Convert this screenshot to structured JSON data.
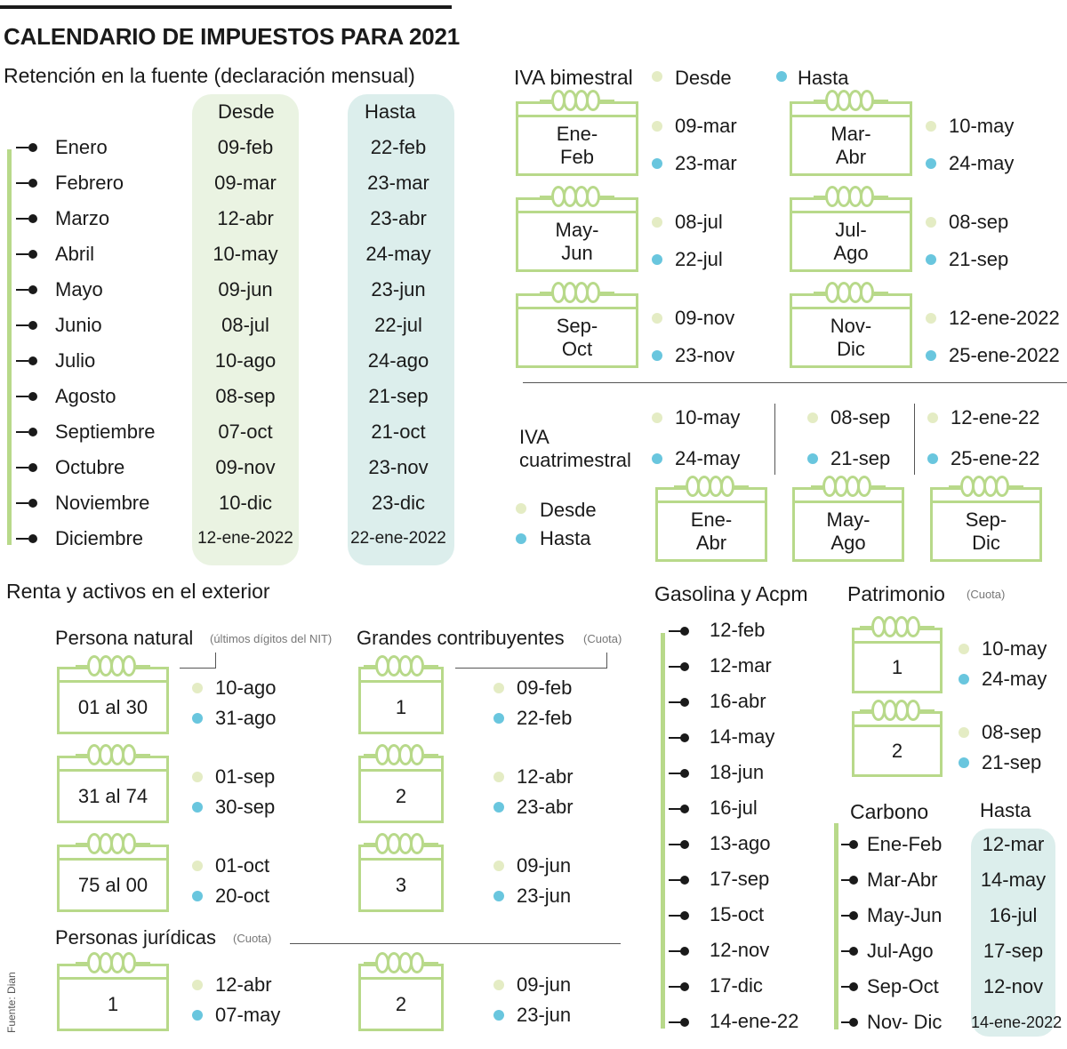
{
  "title": "CALENDARIO DE IMPUESTOS PARA 2021",
  "retencion": {
    "heading": "Retención en la fuente (declaración mensual)",
    "col_desde": "Desde",
    "col_hasta": "Hasta",
    "rows": [
      {
        "mes": "Enero",
        "desde": "09-feb",
        "hasta": "22-feb"
      },
      {
        "mes": "Febrero",
        "desde": "09-mar",
        "hasta": "23-mar"
      },
      {
        "mes": "Marzo",
        "desde": "12-abr",
        "hasta": "23-abr"
      },
      {
        "mes": "Abril",
        "desde": "10-may",
        "hasta": "24-may"
      },
      {
        "mes": "Mayo",
        "desde": "09-jun",
        "hasta": "23-jun"
      },
      {
        "mes": "Junio",
        "desde": "08-jul",
        "hasta": "22-jul"
      },
      {
        "mes": "Julio",
        "desde": "10-ago",
        "hasta": "24-ago"
      },
      {
        "mes": "Agosto",
        "desde": "08-sep",
        "hasta": "21-sep"
      },
      {
        "mes": "Septiembre",
        "desde": "07-oct",
        "hasta": "21-oct"
      },
      {
        "mes": "Octubre",
        "desde": "09-nov",
        "hasta": "23-nov"
      },
      {
        "mes": "Noviembre",
        "desde": "10-dic",
        "hasta": "23-dic"
      },
      {
        "mes": "Diciembre",
        "desde": "12-ene-2022",
        "hasta": "22-ene-2022"
      }
    ]
  },
  "iva_bimestral": {
    "heading": "IVA bimestral",
    "legend_desde": "Desde",
    "legend_hasta": "Hasta",
    "periods": [
      {
        "label": "Ene-\nFeb",
        "desde": "09-mar",
        "hasta": "23-mar"
      },
      {
        "label": "Mar-\nAbr",
        "desde": "10-may",
        "hasta": "24-may"
      },
      {
        "label": "May-\nJun",
        "desde": "08-jul",
        "hasta": "22-jul"
      },
      {
        "label": "Jul-\nAgo",
        "desde": "08-sep",
        "hasta": "21-sep"
      },
      {
        "label": "Sep-\nOct",
        "desde": "09-nov",
        "hasta": "23-nov"
      },
      {
        "label": "Nov-\nDic",
        "desde": "12-ene-2022",
        "hasta": "25-ene-2022"
      }
    ]
  },
  "iva_cuatrimestral": {
    "heading_1": "IVA",
    "heading_2": "cuatrimestral",
    "legend_desde": "Desde",
    "legend_hasta": "Hasta",
    "periods": [
      {
        "label": "Ene-\nAbr",
        "desde": "10-may",
        "hasta": "24-may"
      },
      {
        "label": "May-\nAgo",
        "desde": "08-sep",
        "hasta": "21-sep"
      },
      {
        "label": "Sep-\nDic",
        "desde": "12-ene-22",
        "hasta": "25-ene-22"
      }
    ]
  },
  "renta": {
    "heading": "Renta y activos en el exterior",
    "persona_natural": {
      "heading": "Persona natural",
      "note": "(últimos dígitos del NIT)",
      "items": [
        {
          "label": "01 al 30",
          "desde": "10-ago",
          "hasta": "31-ago"
        },
        {
          "label": "31 al 74",
          "desde": "01-sep",
          "hasta": "30-sep"
        },
        {
          "label": "75 al 00",
          "desde": "01-oct",
          "hasta": "20-oct"
        }
      ]
    },
    "grandes": {
      "heading": "Grandes contribuyentes",
      "note": "(Cuota)",
      "items": [
        {
          "label": "1",
          "desde": "09-feb",
          "hasta": "22-feb"
        },
        {
          "label": "2",
          "desde": "12-abr",
          "hasta": "23-abr"
        },
        {
          "label": "3",
          "desde": "09-jun",
          "hasta": "23-jun"
        }
      ]
    },
    "juridicas": {
      "heading": "Personas jurídicas",
      "note": "(Cuota)",
      "items": [
        {
          "label": "1",
          "desde": "12-abr",
          "hasta": "07-may"
        },
        {
          "label": "2",
          "desde": "09-jun",
          "hasta": "23-jun"
        }
      ]
    }
  },
  "gasolina": {
    "heading": "Gasolina y Acpm",
    "dates": [
      "12-feb",
      "12-mar",
      "16-abr",
      "14-may",
      "18-jun",
      "16-jul",
      "13-ago",
      "17-sep",
      "15-oct",
      "12-nov",
      "17-dic",
      "14-ene-22"
    ]
  },
  "patrimonio": {
    "heading": "Patrimonio",
    "note": "(Cuota)",
    "items": [
      {
        "label": "1",
        "desde": "10-may",
        "hasta": "24-may"
      },
      {
        "label": "2",
        "desde": "08-sep",
        "hasta": "21-sep"
      }
    ]
  },
  "carbono": {
    "heading": "Carbono",
    "col_hasta": "Hasta",
    "rows": [
      {
        "periodo": "Ene-Feb",
        "hasta": "12-mar"
      },
      {
        "periodo": "Mar-Abr",
        "hasta": "14-may"
      },
      {
        "periodo": "May-Jun",
        "hasta": "16-jul"
      },
      {
        "periodo": "Jul-Ago",
        "hasta": "17-sep"
      },
      {
        "periodo": "Sep-Oct",
        "hasta": "12-nov"
      },
      {
        "periodo": "Nov- Dic",
        "hasta": "14-ene-2022"
      }
    ]
  },
  "source": "Fuente: Dian",
  "colors": {
    "accent_green": "#b8d98a",
    "desde_dot": "#e4ecc4",
    "hasta_dot": "#69c6de",
    "desde_bg": "#eaf3e2",
    "hasta_bg": "#dceeec"
  }
}
